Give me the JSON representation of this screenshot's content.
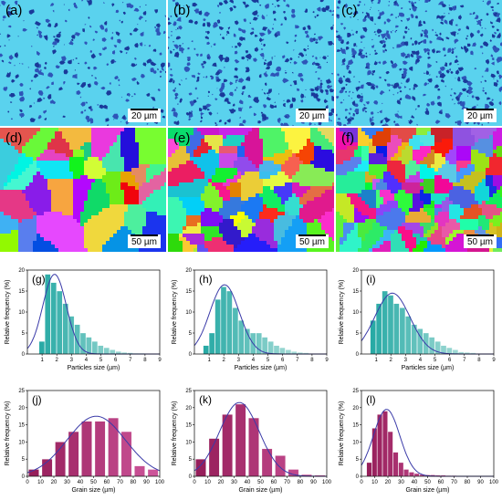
{
  "figure": {
    "micrographs": [
      {
        "label": "(a)",
        "scale": "20 µm",
        "type": "particles"
      },
      {
        "label": "(b)",
        "scale": "20 µm",
        "type": "particles"
      },
      {
        "label": "(c)",
        "scale": "20 µm",
        "type": "particles"
      },
      {
        "label": "(d)",
        "scale": "50 µm",
        "type": "grains"
      },
      {
        "label": "(e)",
        "scale": "50 µm",
        "type": "grains"
      },
      {
        "label": "(f)",
        "scale": "50 µm",
        "type": "grains"
      }
    ],
    "colors": {
      "particle_bg": "#5ad2ee",
      "particle_dark": "#1a3a9a",
      "teal_bar": "#39b8b3",
      "magenta_bar": "#c2337a",
      "fit_line": "#3a3aa8"
    }
  },
  "chart_data": [
    {
      "label": "(g)",
      "type": "bar",
      "xlabel": "Particles size (µm)",
      "ylabel": "Relative frequency (%)",
      "xlim": [
        0,
        9
      ],
      "ylim": [
        0,
        20
      ],
      "xticks": [
        1,
        2,
        3,
        4,
        5,
        6,
        7,
        8,
        9
      ],
      "yticks": [
        0,
        5,
        10,
        15,
        20
      ],
      "bin_width": 0.4,
      "x": [
        1.0,
        1.4,
        1.8,
        2.2,
        2.6,
        3.0,
        3.4,
        3.8,
        4.2,
        4.6,
        5.0,
        5.4,
        5.8,
        6.2,
        6.6,
        7.0,
        7.4,
        7.8
      ],
      "values": [
        3,
        19,
        17,
        15,
        12,
        9,
        7,
        5,
        4,
        3,
        2,
        1.5,
        1,
        0.6,
        0.4,
        0.3,
        0.2,
        0.2
      ],
      "fit": {
        "mu": 1.85,
        "sigma": 0.8,
        "peak": 19
      }
    },
    {
      "label": "(h)",
      "type": "bar",
      "xlabel": "Particles size (µm)",
      "ylabel": "Relative frequency (%)",
      "xlim": [
        0,
        9
      ],
      "ylim": [
        0,
        20
      ],
      "xticks": [
        1,
        2,
        3,
        4,
        5,
        6,
        7,
        8,
        9
      ],
      "yticks": [
        0,
        5,
        10,
        15,
        20
      ],
      "bin_width": 0.4,
      "x": [
        0.8,
        1.2,
        1.6,
        2.0,
        2.4,
        2.8,
        3.2,
        3.6,
        4.0,
        4.4,
        4.8,
        5.2,
        5.6,
        6.0,
        6.4,
        6.8,
        7.2,
        7.6
      ],
      "values": [
        2,
        5,
        13,
        16,
        15,
        11,
        8,
        6,
        5,
        5,
        4,
        3,
        2,
        1.5,
        1,
        0.6,
        0.4,
        0.3
      ],
      "fit": {
        "mu": 2.05,
        "sigma": 1.0,
        "peak": 16.5
      }
    },
    {
      "label": "(i)",
      "type": "bar",
      "xlabel": "Particles size (µm)",
      "ylabel": "Relative frequency (%)",
      "xlim": [
        0,
        9
      ],
      "ylim": [
        0,
        20
      ],
      "xticks": [
        1,
        2,
        3,
        4,
        5,
        6,
        7,
        8,
        9
      ],
      "yticks": [
        0,
        5,
        10,
        15,
        20
      ],
      "bin_width": 0.4,
      "x": [
        0.8,
        1.2,
        1.6,
        2.0,
        2.4,
        2.8,
        3.2,
        3.6,
        4.0,
        4.4,
        4.8,
        5.2,
        5.6,
        6.0,
        6.4,
        6.8,
        7.2,
        7.6
      ],
      "values": [
        8,
        12,
        15,
        14,
        12,
        11,
        9,
        7,
        6,
        5,
        4,
        3,
        2,
        1.5,
        1,
        0.5,
        0.4,
        0.3
      ],
      "fit": {
        "mu": 2.1,
        "sigma": 1.2,
        "peak": 14.5
      }
    },
    {
      "label": "(j)",
      "type": "bar",
      "xlabel": "Grain size (µm)",
      "ylabel": "Relative frequency (%)",
      "xlim": [
        0,
        100
      ],
      "ylim": [
        0,
        25
      ],
      "xticks": [
        0,
        10,
        20,
        30,
        40,
        50,
        60,
        70,
        80,
        90,
        100
      ],
      "yticks": [
        0,
        5,
        10,
        15,
        20,
        25
      ],
      "bin_width": 8,
      "x": [
        5,
        15,
        25,
        35,
        45,
        55,
        65,
        75,
        85,
        95
      ],
      "values": [
        2,
        5,
        10,
        13,
        16,
        16,
        17,
        13,
        3,
        2
      ],
      "fit": {
        "mu": 52,
        "sigma": 22,
        "peak": 17.5
      }
    },
    {
      "label": "(k)",
      "type": "bar",
      "xlabel": "Grain size (µm)",
      "ylabel": "Relative frequency (%)",
      "xlim": [
        0,
        100
      ],
      "ylim": [
        0,
        25
      ],
      "xticks": [
        0,
        10,
        20,
        30,
        40,
        50,
        60,
        70,
        80,
        90,
        100
      ],
      "yticks": [
        0,
        5,
        10,
        15,
        20,
        25
      ],
      "bin_width": 8,
      "x": [
        5,
        15,
        25,
        35,
        45,
        55,
        65,
        75,
        85,
        95
      ],
      "values": [
        5,
        11,
        18,
        21,
        17,
        8,
        6,
        2,
        0.5,
        0.3
      ],
      "fit": {
        "mu": 34,
        "sigma": 15,
        "peak": 21.5
      }
    },
    {
      "label": "(l)",
      "type": "bar",
      "xlabel": "Grain size (µm)",
      "ylabel": "Relative frequency (%)",
      "xlim": [
        0,
        100
      ],
      "ylim": [
        0,
        25
      ],
      "xticks": [
        0,
        10,
        20,
        30,
        40,
        50,
        60,
        70,
        80,
        90,
        100
      ],
      "yticks": [
        0,
        5,
        10,
        15,
        20,
        25
      ],
      "bin_width": 4,
      "x": [
        6,
        10,
        14,
        18,
        22,
        26,
        30,
        34,
        38,
        42,
        46,
        50,
        54,
        58,
        62,
        66,
        70
      ],
      "values": [
        4,
        14,
        18,
        19,
        13,
        7,
        4,
        2,
        1.2,
        0.8,
        0.5,
        0.4,
        0.4,
        0.3,
        0.3,
        0.2,
        0.2
      ],
      "fit": {
        "mu": 19,
        "sigma": 10,
        "peak": 19.5
      }
    }
  ]
}
